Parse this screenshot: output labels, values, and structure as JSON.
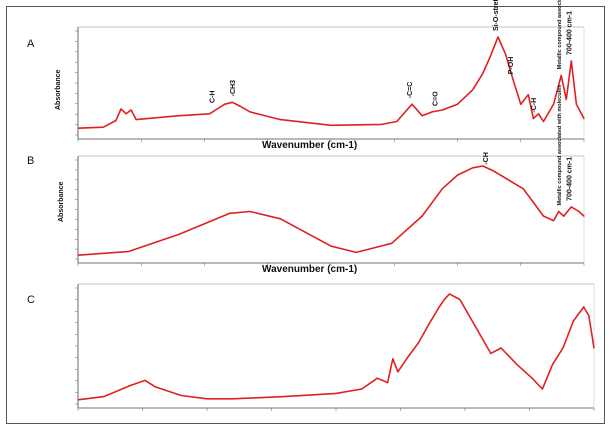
{
  "panels": [
    {
      "letter": "A",
      "xlabel": "Wavenumber (cm-1)",
      "ylabel": "Absorbance",
      "series": {
        "color": "#e02020"
      },
      "annotations": [
        {
          "text": "C-H",
          "at": 0.27
        },
        {
          "text": "-CH3",
          "at": 0.31
        },
        {
          "text": "-C=C",
          "at": 0.66
        },
        {
          "text": "C=O",
          "at": 0.71
        },
        {
          "text": "Si-O-stretch",
          "at": 0.83
        },
        {
          "text": "P-OH",
          "at": 0.86
        },
        {
          "text": "-C-H",
          "at": 0.905
        },
        {
          "text": "Metallic compound associated with molecules",
          "at": 0.955
        },
        {
          "text": "700-400 cm-1",
          "at": 0.975
        }
      ]
    },
    {
      "letter": "B",
      "xlabel": "Wavenumber (cm-1)",
      "ylabel": "Absorbance",
      "series": {
        "color": "#e02020"
      },
      "annotations": [
        {
          "text": "-CH",
          "at": 0.81
        },
        {
          "text": "Metallic compound associated with molecules",
          "at": 0.955
        },
        {
          "text": "700-400 cm-1",
          "at": 0.975
        }
      ]
    },
    {
      "letter": "C",
      "xlabel": "",
      "ylabel": "",
      "series": {
        "color": "#e02020"
      },
      "annotations": []
    }
  ],
  "chart_data": [
    {
      "type": "line",
      "title": "",
      "xlabel": "Wavenumber (cm-1)",
      "ylabel": "Absorbance",
      "x": [
        0.0,
        0.05,
        0.075,
        0.085,
        0.095,
        0.105,
        0.115,
        0.2,
        0.26,
        0.275,
        0.29,
        0.305,
        0.32,
        0.34,
        0.4,
        0.5,
        0.6,
        0.63,
        0.66,
        0.68,
        0.7,
        0.72,
        0.75,
        0.78,
        0.8,
        0.815,
        0.83,
        0.845,
        0.86,
        0.875,
        0.89,
        0.9,
        0.91,
        0.92,
        0.94,
        0.955,
        0.965,
        0.975,
        0.985,
        1.0
      ],
      "y": [
        0.05,
        0.06,
        0.13,
        0.25,
        0.2,
        0.24,
        0.14,
        0.18,
        0.2,
        0.25,
        0.3,
        0.32,
        0.28,
        0.22,
        0.14,
        0.08,
        0.09,
        0.12,
        0.3,
        0.18,
        0.22,
        0.24,
        0.3,
        0.45,
        0.62,
        0.8,
        1.0,
        0.82,
        0.55,
        0.3,
        0.4,
        0.15,
        0.2,
        0.12,
        0.3,
        0.6,
        0.35,
        0.75,
        0.3,
        0.15
      ],
      "grid": false
    },
    {
      "type": "line",
      "title": "",
      "xlabel": "Wavenumber (cm-1)",
      "ylabel": "Absorbance",
      "x": [
        0.0,
        0.1,
        0.2,
        0.3,
        0.34,
        0.4,
        0.5,
        0.55,
        0.62,
        0.68,
        0.72,
        0.75,
        0.78,
        0.8,
        0.82,
        0.85,
        0.88,
        0.9,
        0.92,
        0.94,
        0.95,
        0.96,
        0.975,
        0.99,
        1.0
      ],
      "y": [
        0.02,
        0.06,
        0.25,
        0.48,
        0.5,
        0.42,
        0.12,
        0.05,
        0.15,
        0.45,
        0.75,
        0.9,
        0.98,
        1.0,
        0.95,
        0.85,
        0.75,
        0.6,
        0.45,
        0.4,
        0.5,
        0.45,
        0.55,
        0.5,
        0.45
      ],
      "grid": false
    },
    {
      "type": "line",
      "title": "",
      "xlabel": "",
      "ylabel": "",
      "x": [
        0.0,
        0.05,
        0.1,
        0.13,
        0.15,
        0.2,
        0.25,
        0.3,
        0.4,
        0.5,
        0.55,
        0.58,
        0.6,
        0.61,
        0.62,
        0.64,
        0.66,
        0.68,
        0.7,
        0.71,
        0.72,
        0.74,
        0.77,
        0.8,
        0.82,
        0.85,
        0.88,
        0.9,
        0.92,
        0.94,
        0.96,
        0.98,
        0.99,
        1.0
      ],
      "y": [
        0.02,
        0.05,
        0.15,
        0.2,
        0.14,
        0.06,
        0.03,
        0.03,
        0.05,
        0.08,
        0.12,
        0.22,
        0.18,
        0.4,
        0.28,
        0.42,
        0.55,
        0.72,
        0.88,
        0.95,
        1.0,
        0.95,
        0.7,
        0.45,
        0.5,
        0.35,
        0.22,
        0.12,
        0.35,
        0.5,
        0.75,
        0.88,
        0.8,
        0.5
      ],
      "grid": false
    }
  ]
}
